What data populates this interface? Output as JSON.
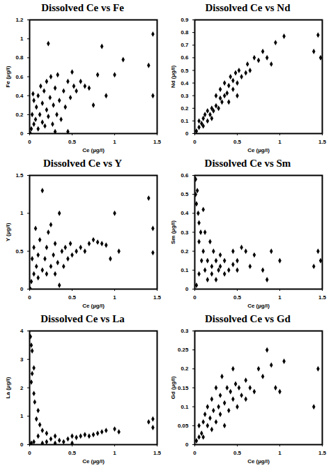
{
  "chart_data": [
    {
      "type": "scatter",
      "title": "Dissolved Ce vs Fe",
      "x_label": "Ce (µg/l)",
      "y_label": "Fe (µg/l)",
      "color": "#000000",
      "marker": "diamond",
      "grid": false,
      "xlim": [
        0,
        1.5
      ],
      "xticks": [
        0,
        0.5,
        1,
        1.5
      ],
      "ylim": [
        0,
        1.2
      ],
      "yticks": [
        0,
        0.2,
        0.4,
        0.6,
        0.8,
        1,
        1.2
      ],
      "x": [
        0.22,
        0.85,
        1.1,
        1.4,
        1.45,
        1.45,
        0.6,
        0.65,
        0.7,
        0.9,
        1.0,
        0.75,
        0.8,
        0.02,
        0.03,
        0.05,
        0.05,
        0.07,
        0.08,
        0.1,
        0.1,
        0.12,
        0.13,
        0.15,
        0.15,
        0.17,
        0.18,
        0.2,
        0.2,
        0.22,
        0.24,
        0.25,
        0.27,
        0.28,
        0.3,
        0.32,
        0.33,
        0.35,
        0.37,
        0.4,
        0.42,
        0.45,
        0.48,
        0.5,
        0.52,
        0.55,
        0.3,
        0.45,
        0.01,
        0.04
      ],
      "values": [
        0.95,
        0.92,
        0.78,
        0.72,
        1.05,
        0.4,
        0.55,
        0.5,
        0.48,
        0.4,
        0.62,
        0.3,
        0.62,
        0.05,
        0.2,
        0.1,
        0.35,
        0.15,
        0.28,
        0.05,
        0.4,
        0.2,
        0.5,
        0.12,
        0.32,
        0.45,
        0.08,
        0.25,
        0.55,
        0.18,
        0.38,
        0.6,
        0.1,
        0.3,
        0.48,
        0.2,
        0.62,
        0.35,
        0.15,
        0.45,
        0.28,
        0.55,
        0.38,
        0.65,
        0.5,
        0.45,
        0.02,
        0.02,
        0,
        0.42
      ]
    },
    {
      "type": "scatter",
      "title": "Dissolved Ce vs Nd",
      "x_label": "Ce (µg/l)",
      "y_label": "Nd (µg/l)",
      "color": "#000000",
      "marker": "diamond",
      "grid": false,
      "xlim": [
        0,
        1.5
      ],
      "xticks": [
        0,
        0.5,
        1,
        1.5
      ],
      "ylim": [
        0,
        0.9
      ],
      "yticks": [
        0,
        0.1,
        0.2,
        0.3,
        0.4,
        0.5,
        0.6,
        0.7,
        0.8,
        0.9
      ],
      "x": [
        0.02,
        0.05,
        0.05,
        0.08,
        0.1,
        0.1,
        0.12,
        0.15,
        0.15,
        0.18,
        0.2,
        0.2,
        0.22,
        0.25,
        0.25,
        0.28,
        0.3,
        0.3,
        0.32,
        0.35,
        0.35,
        0.38,
        0.4,
        0.42,
        0.45,
        0.45,
        0.48,
        0.5,
        0.52,
        0.55,
        0.6,
        0.62,
        0.65,
        0.7,
        0.75,
        0.8,
        0.85,
        0.9,
        0.95,
        1.05,
        1.4,
        1.45,
        1.48,
        0.5,
        0.4
      ],
      "values": [
        0.02,
        0.05,
        0.1,
        0.08,
        0.12,
        0.06,
        0.15,
        0.1,
        0.18,
        0.15,
        0.2,
        0.12,
        0.18,
        0.22,
        0.3,
        0.2,
        0.28,
        0.35,
        0.25,
        0.3,
        0.4,
        0.32,
        0.38,
        0.45,
        0.35,
        0.42,
        0.48,
        0.4,
        0.5,
        0.45,
        0.48,
        0.55,
        0.5,
        0.6,
        0.58,
        0.65,
        0.6,
        0.55,
        0.72,
        0.77,
        0.65,
        0.78,
        0.6,
        0.3,
        0.25
      ]
    },
    {
      "type": "scatter",
      "title": "Dissolved Ce vs Y",
      "x_label": "Ce (µg/l)",
      "y_label": "Y (µg/l)",
      "color": "#000000",
      "marker": "diamond",
      "grid": false,
      "xlim": [
        0,
        1.5
      ],
      "xticks": [
        0,
        0.5,
        1,
        1.5
      ],
      "ylim": [
        0,
        1.5
      ],
      "yticks": [
        0,
        0.5,
        1,
        1.5
      ],
      "x": [
        0.02,
        0.03,
        0.05,
        0.05,
        0.07,
        0.08,
        0.1,
        0.1,
        0.12,
        0.15,
        0.15,
        0.18,
        0.2,
        0.2,
        0.22,
        0.25,
        0.25,
        0.28,
        0.3,
        0.3,
        0.33,
        0.35,
        0.38,
        0.4,
        0.42,
        0.45,
        0.48,
        0.5,
        0.55,
        0.6,
        0.65,
        0.7,
        0.75,
        0.8,
        0.85,
        0.9,
        0.95,
        1.0,
        1.05,
        1.4,
        1.45,
        1.45,
        0.01,
        0.35
      ],
      "values": [
        0.1,
        0.4,
        0.2,
        0.55,
        0.8,
        0.3,
        0.15,
        0.45,
        0.65,
        1.3,
        0.25,
        0.4,
        0.2,
        0.55,
        0.75,
        0.3,
        0.85,
        0.45,
        0.2,
        0.6,
        0.35,
        1.0,
        0.5,
        0.3,
        0.55,
        0.4,
        0.6,
        0.45,
        0.5,
        0.55,
        0.5,
        0.6,
        0.65,
        0.62,
        0.6,
        0.58,
        0.4,
        1.0,
        0.5,
        1.2,
        0.8,
        0.48,
        0,
        0.05
      ]
    },
    {
      "type": "scatter",
      "title": "Dissolved Ce vs Sm",
      "x_label": "Ce (µg/l)",
      "y_label": "Sm (µg/l)",
      "color": "#000000",
      "marker": "diamond",
      "grid": false,
      "xlim": [
        0,
        1.5
      ],
      "xticks": [
        0,
        0.5,
        1,
        1.5
      ],
      "ylim": [
        0,
        0.6
      ],
      "yticks": [
        0,
        0.1,
        0.2,
        0.3,
        0.4,
        0.5,
        0.6
      ],
      "x": [
        0.01,
        0.01,
        0.02,
        0.03,
        0.04,
        0.05,
        0.05,
        0.07,
        0.08,
        0.1,
        0.1,
        0.12,
        0.12,
        0.15,
        0.15,
        0.18,
        0.2,
        0.2,
        0.22,
        0.25,
        0.25,
        0.28,
        0.3,
        0.3,
        0.35,
        0.35,
        0.4,
        0.45,
        0.45,
        0.5,
        0.5,
        0.55,
        0.6,
        0.65,
        0.7,
        0.8,
        0.85,
        0.9,
        1.0,
        1.4,
        1.45,
        1.48,
        0.02,
        0.05
      ],
      "values": [
        0.58,
        0.5,
        0.45,
        0.52,
        0.4,
        0.35,
        0.25,
        0.3,
        0.15,
        0.42,
        0.2,
        0.1,
        0.3,
        0.15,
        0.05,
        0.25,
        0.12,
        0.08,
        0.2,
        0.15,
        0.05,
        0.1,
        0.18,
        0.12,
        0.08,
        0.15,
        0.1,
        0.13,
        0.2,
        0.1,
        0.15,
        0.22,
        0.2,
        0.12,
        0.18,
        0.1,
        0.05,
        0.2,
        0.15,
        0.12,
        0.2,
        0.15,
        0.02,
        0.08
      ]
    },
    {
      "type": "scatter",
      "title": "Dissolved Ce vs La",
      "x_label": "Ce (µg/l)",
      "y_label": "La (µg/l)",
      "color": "#000000",
      "marker": "diamond",
      "grid": false,
      "xlim": [
        0,
        1.5
      ],
      "xticks": [
        0,
        0.5,
        1,
        1.5
      ],
      "ylim": [
        0,
        4
      ],
      "yticks": [
        0,
        1,
        2,
        3,
        4
      ],
      "x": [
        0.01,
        0.02,
        0.03,
        0.05,
        0.03,
        0.02,
        0.05,
        0.06,
        0.1,
        0.08,
        0.12,
        0.15,
        0.1,
        0.2,
        0.2,
        0.25,
        0.3,
        0.3,
        0.35,
        0.4,
        0.45,
        0.5,
        0.5,
        0.55,
        0.6,
        0.65,
        0.7,
        0.75,
        0.8,
        0.85,
        0.9,
        1.0,
        1.05,
        1.4,
        1.45,
        1.45,
        0.02,
        0.05,
        0.15
      ],
      "values": [
        3.8,
        3.5,
        3.3,
        2.7,
        2.5,
        2.2,
        1.8,
        1.5,
        1.2,
        0.9,
        0.7,
        0.5,
        0.3,
        0.4,
        0.1,
        0.2,
        0.3,
        0.05,
        0.15,
        0.1,
        0.2,
        0.3,
        0.05,
        0.25,
        0.3,
        0.35,
        0.3,
        0.35,
        0.4,
        0.45,
        0.5,
        0.55,
        0.45,
        0.8,
        0.9,
        0.6,
        0.05,
        0.1,
        0.05
      ]
    },
    {
      "type": "scatter",
      "title": "Dissolved Ce vs Gd",
      "x_label": "Ce (µg/l)",
      "y_label": "Gd (µg/l)",
      "color": "#000000",
      "marker": "diamond",
      "grid": false,
      "xlim": [
        0,
        1.5
      ],
      "xticks": [
        0,
        0.5,
        1,
        1.5
      ],
      "ylim": [
        0,
        0.3
      ],
      "yticks": [
        0,
        0.05,
        0.1,
        0.15,
        0.2,
        0.25,
        0.3
      ],
      "x": [
        0.02,
        0.05,
        0.05,
        0.08,
        0.1,
        0.1,
        0.12,
        0.15,
        0.15,
        0.18,
        0.2,
        0.2,
        0.22,
        0.25,
        0.25,
        0.28,
        0.3,
        0.3,
        0.32,
        0.35,
        0.38,
        0.4,
        0.42,
        0.45,
        0.45,
        0.48,
        0.5,
        0.52,
        0.55,
        0.6,
        0.6,
        0.65,
        0.7,
        0.75,
        0.8,
        0.85,
        0.9,
        0.95,
        1.0,
        1.05,
        1.4,
        1.45,
        0.35
      ],
      "values": [
        0.01,
        0.02,
        0.05,
        0.03,
        0.06,
        0.02,
        0.08,
        0.05,
        0.1,
        0.07,
        0.12,
        0.04,
        0.09,
        0.15,
        0.06,
        0.1,
        0.13,
        0.08,
        0.18,
        0.11,
        0.15,
        0.09,
        0.14,
        0.2,
        0.12,
        0.16,
        0.1,
        0.15,
        0.13,
        0.12,
        0.17,
        0.15,
        0.14,
        0.2,
        0.18,
        0.25,
        0.21,
        0.15,
        0.14,
        0.22,
        0.1,
        0.2,
        0.05
      ]
    }
  ]
}
